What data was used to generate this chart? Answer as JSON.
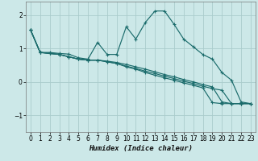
{
  "xlabel": "Humidex (Indice chaleur)",
  "bg_color": "#cce8e8",
  "grid_color": "#aacccc",
  "line_color": "#1a6b6b",
  "xlim": [
    -0.5,
    23.5
  ],
  "ylim": [
    -1.5,
    2.4
  ],
  "yticks": [
    -1,
    0,
    1,
    2
  ],
  "xticks": [
    0,
    1,
    2,
    3,
    4,
    5,
    6,
    7,
    8,
    9,
    10,
    11,
    12,
    13,
    14,
    15,
    16,
    17,
    18,
    19,
    20,
    21,
    22,
    23
  ],
  "series": [
    [
      1.55,
      0.88,
      0.88,
      0.85,
      0.83,
      0.72,
      0.68,
      1.18,
      0.82,
      0.82,
      1.65,
      1.28,
      1.78,
      2.12,
      2.12,
      1.72,
      1.28,
      1.05,
      0.82,
      0.68,
      0.28,
      0.05,
      -0.6,
      -0.65
    ],
    [
      1.55,
      0.88,
      0.85,
      0.82,
      0.75,
      0.68,
      0.65,
      0.65,
      0.62,
      0.58,
      0.52,
      0.45,
      0.38,
      0.3,
      0.22,
      0.15,
      0.07,
      0.0,
      -0.08,
      -0.15,
      -0.6,
      -0.65,
      -0.65,
      -0.65
    ],
    [
      1.55,
      0.88,
      0.85,
      0.82,
      0.75,
      0.68,
      0.65,
      0.65,
      0.6,
      0.55,
      0.47,
      0.4,
      0.32,
      0.25,
      0.17,
      0.1,
      0.02,
      -0.05,
      -0.13,
      -0.2,
      -0.25,
      -0.65,
      -0.65,
      -0.65
    ],
    [
      1.55,
      0.88,
      0.85,
      0.82,
      0.75,
      0.68,
      0.65,
      0.65,
      0.6,
      0.55,
      0.45,
      0.38,
      0.28,
      0.2,
      0.12,
      0.05,
      -0.03,
      -0.1,
      -0.18,
      -0.62,
      -0.65,
      -0.65,
      -0.65,
      -0.65
    ]
  ]
}
